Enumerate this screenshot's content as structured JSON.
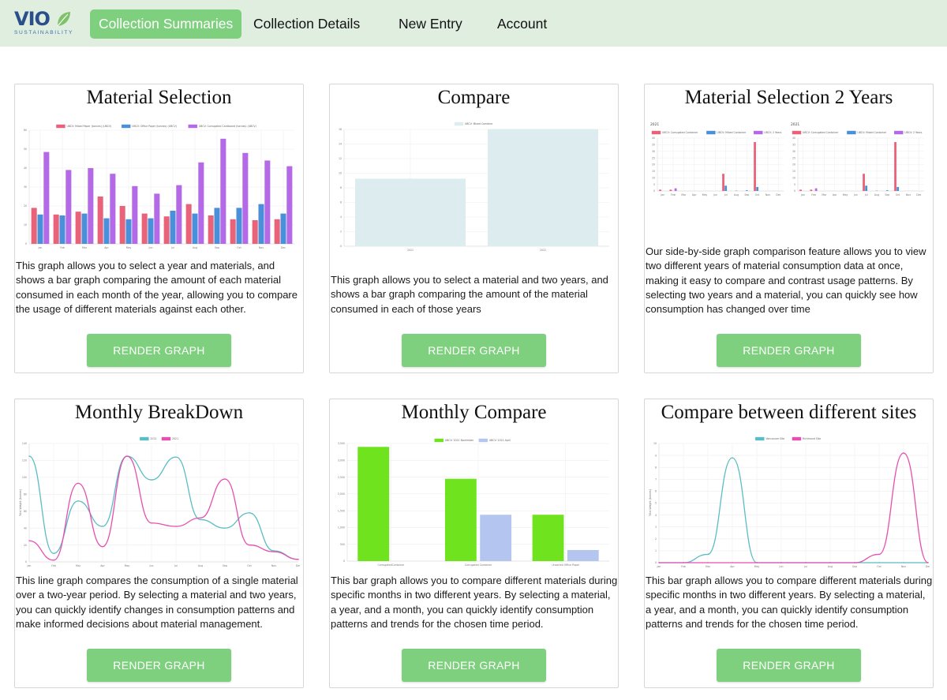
{
  "brand": {
    "name": "VIO",
    "tagline": "SUSTAINABILITY"
  },
  "nav": {
    "items": [
      {
        "label": "Collection Summaries",
        "active": true
      },
      {
        "label": "Collection Details",
        "active": false
      },
      {
        "label": "New Entry",
        "active": false
      },
      {
        "label": "Account",
        "active": false
      }
    ]
  },
  "colors": {
    "accent": "#7ed07e",
    "nav_bg": "#e0eee0"
  },
  "cards": [
    {
      "title": "Material Selection",
      "description": "This graph allows you to select a year and materials, and shows a bar graph comparing the amount of each material consumed in each month of the year, allowing you to compare the usage of different materials against each other.",
      "button": "RENDER GRAPH"
    },
    {
      "title": "Compare",
      "description": "This graph allows you to select a material and two years, and shows a bar graph comparing the amount of the material consumed in each of those years",
      "button": "RENDER GRAPH"
    },
    {
      "title": "Material Selection 2 Years",
      "description": "Our side-by-side graph comparison feature allows you to view two different years of material consumption data at once, making it easy to compare and contrast usage patterns. By selecting two years and a material, you can quickly see how consumption has changed over time",
      "button": "RENDER GRAPH"
    },
    {
      "title": "Monthly BreakDown",
      "description": "This line graph compares the consumption of a single material over a two-year period. By selecting a material and two years, you can quickly identify changes in consumption patterns and make informed decisions about material management.",
      "button": "RENDER GRAPH"
    },
    {
      "title": "Monthly Compare",
      "description": "This bar graph allows you to compare different materials during specific months in two different years. By selecting a material, a year, and a month, you can quickly identify consumption patterns and trends for the chosen time period.",
      "button": "RENDER GRAPH"
    },
    {
      "title": "Compare between different sites",
      "description": "This bar graph allows you to compare different materials during specific months in two different years. By selecting a material, a year, and a month, you can quickly identify consumption patterns and trends for the chosen time period.",
      "button": "RENDER GRAPH"
    }
  ],
  "chart_data": [
    {
      "type": "bar",
      "categories": [
        "Jan",
        "Feb",
        "Mar",
        "Apr",
        "May",
        "Jun",
        "Jul",
        "Aug",
        "Sep",
        "Oct",
        "Nov",
        "Dec"
      ],
      "ylim": [
        0,
        60
      ],
      "yticks": [
        "0",
        "10",
        "20",
        "30",
        "40",
        "50",
        "60"
      ],
      "series": [
        {
          "name": "UBCV: Mixed Paper (tonnes) (UBCV)",
          "color": "#e8637a",
          "values": [
            19,
            15.5,
            17,
            25,
            20,
            16,
            14.5,
            21,
            15,
            13,
            12.5,
            13
          ]
        },
        {
          "name": "UBCV: Office Paper (tonnes) (UBCV)",
          "color": "#4a90d9",
          "values": [
            15.5,
            15,
            16,
            13.5,
            13,
            13.5,
            17.5,
            16,
            19,
            19,
            21,
            16
          ]
        },
        {
          "name": "UBCV: Corrugated Cardboard (tonnes) (UBCV)",
          "color": "#b469e6",
          "values": [
            48.5,
            39,
            40,
            37,
            30.5,
            26.5,
            31,
            43,
            55.5,
            48,
            44,
            41
          ]
        }
      ]
    },
    {
      "type": "bar",
      "categories": [
        "2021",
        "2022"
      ],
      "ylim": [
        0,
        16
      ],
      "yticks": [
        "0",
        "2",
        "4",
        "6",
        "8",
        "10",
        "12",
        "14",
        "16"
      ],
      "series": [
        {
          "name": "UBCV: Mixed Combine",
          "color": "#ddecef",
          "values": [
            9.2,
            16
          ]
        }
      ]
    },
    {
      "type": "bar",
      "panels": [
        {
          "year": "2021",
          "categories": [
            "Jan",
            "Feb",
            "Mar",
            "Apr",
            "May",
            "Jun",
            "Jul",
            "Aug",
            "Sep",
            "Oct",
            "Nov",
            "Dec"
          ],
          "ylim": [
            0,
            40
          ],
          "series": [
            {
              "name": "UBCV: Corrugated Container",
              "color": "#e8637a",
              "values": [
                1,
                1,
                0,
                0,
                0,
                0,
                13,
                0,
                0,
                37,
                0,
                0
              ]
            },
            {
              "name": "UBCV: Mixed Container",
              "color": "#4a90d9",
              "values": [
                0,
                0,
                0,
                0,
                0,
                0,
                4,
                0.2,
                0.5,
                3,
                0,
                0
              ]
            },
            {
              "name": "UBCV: 2 Years",
              "color": "#b469e6",
              "values": [
                0,
                2,
                0,
                0,
                0,
                0,
                0,
                0,
                0,
                0,
                0,
                0
              ]
            }
          ]
        },
        {
          "year": "2021",
          "categories": [
            "Jan",
            "Feb",
            "Mar",
            "Apr",
            "May",
            "Jun",
            "Jul",
            "Aug",
            "Sep",
            "Oct",
            "Nov",
            "Dec"
          ],
          "ylim": [
            0,
            40
          ],
          "series": [
            {
              "name": "UBCV: Corrugated Container",
              "color": "#e8637a",
              "values": [
                1,
                1,
                0,
                0,
                0,
                0,
                13,
                0,
                0,
                37,
                0,
                0
              ]
            },
            {
              "name": "UBCV: Mixed Container",
              "color": "#4a90d9",
              "values": [
                0,
                0,
                0,
                0,
                0,
                0,
                4,
                0.2,
                0.5,
                3,
                0,
                0
              ]
            },
            {
              "name": "UBCV: 2 Years",
              "color": "#b469e6",
              "values": [
                0,
                2,
                0,
                0,
                0,
                0,
                0,
                0,
                0,
                0,
                0,
                0
              ]
            }
          ]
        }
      ]
    },
    {
      "type": "line",
      "categories": [
        "Jan",
        "Feb",
        "Mar",
        "Apr",
        "May",
        "Jun",
        "Jul",
        "Aug",
        "Sep",
        "Oct",
        "Nov",
        "Dec"
      ],
      "ylim": [
        0,
        140
      ],
      "yticks": [
        "0",
        "20",
        "40",
        "60",
        "80",
        "100",
        "120",
        "140"
      ],
      "ylabel": "Total Weight (tonnes)",
      "series": [
        {
          "name": "2021",
          "color": "#5bbcc4",
          "values": [
            125,
            10,
            72,
            42,
            125,
            97,
            124,
            50,
            40,
            58,
            13,
            3
          ]
        },
        {
          "name": "2021",
          "color": "#e64fb0",
          "values": [
            25,
            2,
            93,
            18,
            125,
            46,
            42,
            52,
            98,
            20,
            12,
            3
          ]
        }
      ]
    },
    {
      "type": "bar",
      "categories": [
        "CorrugatedContainer",
        "Corrugated Container",
        "Unsorted Office Paper"
      ],
      "ylim": [
        0,
        3500
      ],
      "yticks": [
        "0",
        "500",
        "1,000",
        "1,500",
        "2,000",
        "2,500",
        "3,000",
        "3,500"
      ],
      "series": [
        {
          "name": "UBCV: 2021 November",
          "color": "#6ee31e",
          "values": [
            3400,
            2450,
            1380
          ]
        },
        {
          "name": "UBCV: 2021 April",
          "color": "#b4c6f0",
          "values": [
            0,
            1380,
            330
          ]
        }
      ]
    },
    {
      "type": "line",
      "categories": [
        "Jan",
        "Feb",
        "Mar",
        "Apr",
        "May",
        "Jun",
        "Jul",
        "Aug",
        "Sep",
        "Oct",
        "Nov",
        "Dec"
      ],
      "ylim": [
        0,
        10
      ],
      "yticks": [
        "0",
        "1",
        "2",
        "3",
        "4",
        "5",
        "6",
        "7",
        "8",
        "9",
        "10"
      ],
      "ylabel": "Total Weight (tonnes)",
      "series": [
        {
          "name": "Vancouver Site",
          "color": "#5bbcc4",
          "values": [
            0,
            0,
            0.7,
            8.8,
            0,
            0,
            0,
            0,
            0,
            0,
            0,
            0
          ]
        },
        {
          "name": "Richmond Site",
          "color": "#e64fb0",
          "values": [
            0,
            0,
            0,
            0,
            0,
            0,
            0,
            0,
            0,
            0.7,
            9.2,
            0
          ]
        }
      ]
    }
  ]
}
